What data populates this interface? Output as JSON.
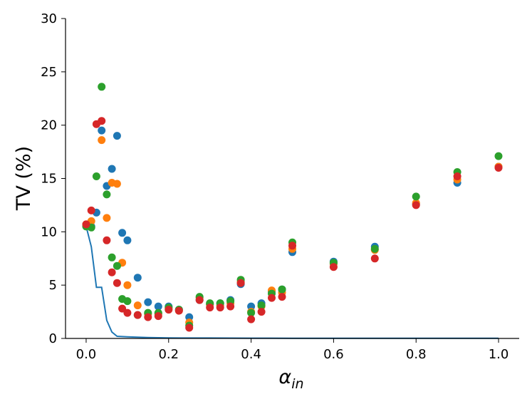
{
  "chart_data": {
    "type": "scatter",
    "ylabel": "TV (%)",
    "xlabel": "α",
    "xlabel_subscript": "in",
    "xlim": [
      -0.05,
      1.05
    ],
    "ylim": [
      0,
      30
    ],
    "x_ticks": [
      0.0,
      0.2,
      0.4,
      0.6,
      0.8,
      1.0
    ],
    "x_tick_labels": [
      "0.0",
      "0.2",
      "0.4",
      "0.6",
      "0.8",
      "1.0"
    ],
    "y_ticks": [
      0,
      5,
      10,
      15,
      20,
      25,
      30
    ],
    "y_tick_labels": [
      "0",
      "5",
      "10",
      "15",
      "20",
      "25",
      "30"
    ],
    "grid": false,
    "colors": [
      "#1f77b4",
      "#ff7f0e",
      "#2ca02c",
      "#d62728"
    ],
    "series": [
      {
        "color": "#1f77b4",
        "points": [
          [
            0.0,
            10.6
          ],
          [
            0.0125,
            10.5
          ],
          [
            0.025,
            11.8
          ],
          [
            0.0375,
            19.5
          ],
          [
            0.05,
            14.3
          ],
          [
            0.0625,
            15.9
          ],
          [
            0.075,
            19.0
          ],
          [
            0.0875,
            9.9
          ],
          [
            0.1,
            9.2
          ],
          [
            0.125,
            5.7
          ],
          [
            0.15,
            3.4
          ],
          [
            0.175,
            3.0
          ],
          [
            0.2,
            3.0
          ],
          [
            0.225,
            2.7
          ],
          [
            0.25,
            2.0
          ],
          [
            0.275,
            3.6
          ],
          [
            0.3,
            3.2
          ],
          [
            0.325,
            3.3
          ],
          [
            0.35,
            3.6
          ],
          [
            0.375,
            5.1
          ],
          [
            0.4,
            3.0
          ],
          [
            0.425,
            3.3
          ],
          [
            0.45,
            4.4
          ],
          [
            0.475,
            4.6
          ],
          [
            0.5,
            8.1
          ],
          [
            0.6,
            7.2
          ],
          [
            0.7,
            8.6
          ],
          [
            0.8,
            12.6
          ],
          [
            0.9,
            14.6
          ],
          [
            1.0,
            16.1
          ]
        ]
      },
      {
        "color": "#ff7f0e",
        "points": [
          [
            0.0,
            10.7
          ],
          [
            0.0125,
            11.0
          ],
          [
            0.0375,
            18.6
          ],
          [
            0.05,
            11.3
          ],
          [
            0.0625,
            14.6
          ],
          [
            0.075,
            14.5
          ],
          [
            0.0875,
            7.1
          ],
          [
            0.1,
            5.0
          ],
          [
            0.125,
            3.1
          ],
          [
            0.15,
            2.3
          ],
          [
            0.175,
            2.3
          ],
          [
            0.2,
            2.8
          ],
          [
            0.225,
            2.6
          ],
          [
            0.25,
            1.5
          ],
          [
            0.275,
            3.8
          ],
          [
            0.3,
            3.2
          ],
          [
            0.325,
            3.1
          ],
          [
            0.35,
            3.3
          ],
          [
            0.375,
            5.3
          ],
          [
            0.4,
            2.5
          ],
          [
            0.425,
            3.0
          ],
          [
            0.45,
            4.5
          ],
          [
            0.475,
            4.3
          ],
          [
            0.5,
            8.4
          ],
          [
            0.6,
            7.0
          ],
          [
            0.7,
            8.3
          ],
          [
            0.8,
            12.7
          ],
          [
            0.9,
            14.9
          ],
          [
            1.0,
            16.1
          ]
        ]
      },
      {
        "color": "#2ca02c",
        "points": [
          [
            0.0,
            10.5
          ],
          [
            0.0125,
            10.4
          ],
          [
            0.025,
            15.2
          ],
          [
            0.0375,
            23.6
          ],
          [
            0.05,
            13.5
          ],
          [
            0.0625,
            7.6
          ],
          [
            0.075,
            6.8
          ],
          [
            0.0875,
            3.7
          ],
          [
            0.1,
            3.5
          ],
          [
            0.125,
            2.2
          ],
          [
            0.15,
            2.4
          ],
          [
            0.175,
            2.4
          ],
          [
            0.2,
            2.9
          ],
          [
            0.225,
            2.7
          ],
          [
            0.25,
            1.2
          ],
          [
            0.275,
            3.9
          ],
          [
            0.3,
            3.3
          ],
          [
            0.325,
            3.3
          ],
          [
            0.35,
            3.5
          ],
          [
            0.375,
            5.5
          ],
          [
            0.4,
            2.4
          ],
          [
            0.425,
            3.1
          ],
          [
            0.45,
            4.2
          ],
          [
            0.475,
            4.6
          ],
          [
            0.5,
            9.0
          ],
          [
            0.6,
            7.1
          ],
          [
            0.7,
            8.4
          ],
          [
            0.8,
            13.3
          ],
          [
            0.9,
            15.6
          ],
          [
            1.0,
            17.1
          ]
        ]
      },
      {
        "color": "#d62728",
        "points": [
          [
            0.0,
            10.7
          ],
          [
            0.0125,
            12.0
          ],
          [
            0.025,
            20.1
          ],
          [
            0.0375,
            20.4
          ],
          [
            0.05,
            9.2
          ],
          [
            0.0625,
            6.2
          ],
          [
            0.075,
            5.2
          ],
          [
            0.0875,
            2.8
          ],
          [
            0.1,
            2.4
          ],
          [
            0.125,
            2.2
          ],
          [
            0.15,
            2.0
          ],
          [
            0.175,
            2.1
          ],
          [
            0.2,
            2.7
          ],
          [
            0.225,
            2.6
          ],
          [
            0.25,
            1.0
          ],
          [
            0.275,
            3.6
          ],
          [
            0.3,
            2.9
          ],
          [
            0.325,
            2.9
          ],
          [
            0.35,
            3.0
          ],
          [
            0.375,
            5.2
          ],
          [
            0.4,
            1.8
          ],
          [
            0.425,
            2.5
          ],
          [
            0.45,
            3.8
          ],
          [
            0.475,
            3.9
          ],
          [
            0.5,
            8.7
          ],
          [
            0.6,
            6.7
          ],
          [
            0.7,
            7.5
          ],
          [
            0.8,
            12.5
          ],
          [
            0.9,
            15.2
          ],
          [
            1.0,
            16.0
          ]
        ]
      }
    ],
    "line": {
      "color": "#1f77b4",
      "points": [
        [
          0.0,
          10.5
        ],
        [
          0.0125,
          8.6
        ],
        [
          0.025,
          4.8
        ],
        [
          0.0375,
          4.8
        ],
        [
          0.05,
          1.7
        ],
        [
          0.0625,
          0.6
        ],
        [
          0.075,
          0.2
        ],
        [
          0.1,
          0.15
        ],
        [
          0.15,
          0.08
        ],
        [
          0.2,
          0.05
        ],
        [
          0.3,
          0.04
        ],
        [
          0.4,
          0.03
        ],
        [
          0.5,
          0.02
        ],
        [
          0.6,
          0.02
        ],
        [
          0.7,
          0.02
        ],
        [
          0.8,
          0.02
        ],
        [
          0.9,
          0.02
        ],
        [
          1.0,
          0.02
        ]
      ]
    }
  }
}
